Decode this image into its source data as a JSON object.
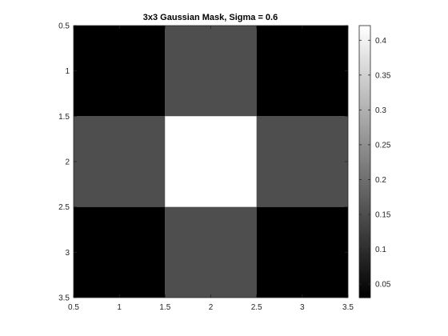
{
  "chart_data": {
    "type": "heatmap",
    "title": "3x3 Gaussian Mask, Sigma = 0.6",
    "xlabel": "",
    "ylabel": "",
    "colormap": "gray",
    "x_centers": [
      1,
      2,
      3
    ],
    "y_centers": [
      1,
      2,
      3
    ],
    "values": [
      [
        0.0306,
        0.1493,
        0.0306
      ],
      [
        0.1493,
        0.421,
        0.1493
      ],
      [
        0.0306,
        0.1493,
        0.0306
      ]
    ],
    "xlim": [
      0.5,
      3.5
    ],
    "ylim": [
      0.5,
      3.5
    ],
    "y_reversed": true,
    "x_ticks": [
      "0.5",
      "1",
      "1.5",
      "2",
      "2.5",
      "3",
      "3.5"
    ],
    "y_ticks": [
      "0.5",
      "1",
      "1.5",
      "2",
      "2.5",
      "3",
      "3.5"
    ],
    "colorbar": {
      "range": [
        0.0306,
        0.421
      ],
      "ticks": [
        "0.05",
        "0.1",
        "0.15",
        "0.2",
        "0.25",
        "0.3",
        "0.35",
        "0.4"
      ]
    },
    "grid": false
  }
}
